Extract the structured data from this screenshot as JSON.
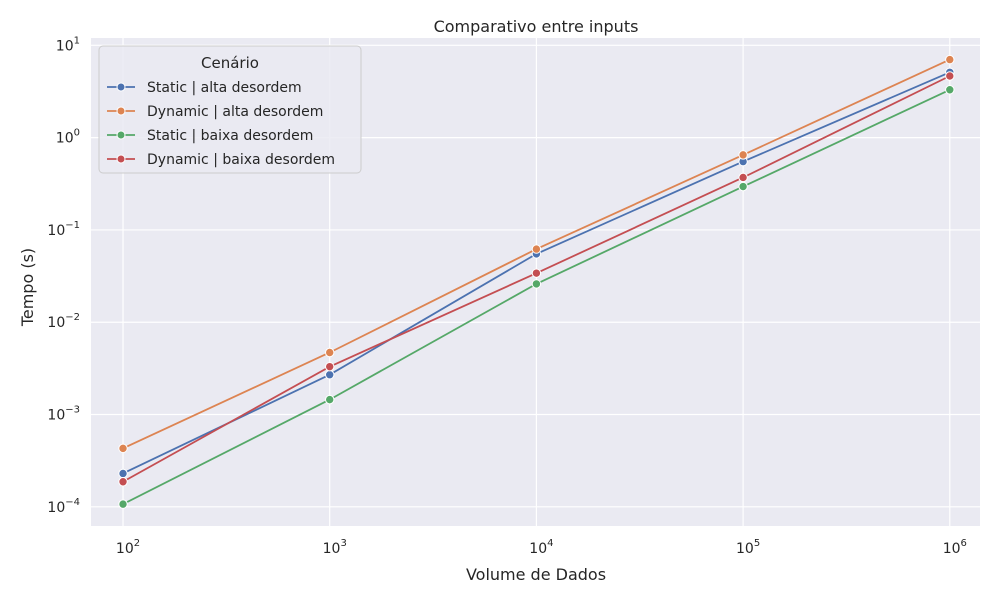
{
  "chart_data": {
    "type": "line",
    "title": "Comparativo entre inputs",
    "xlabel": "Volume de Dados",
    "ylabel": "Tempo (s)",
    "xscale": "log",
    "yscale": "log",
    "xlim": [
      70,
      1400000
    ],
    "ylim": [
      6.2e-05,
      12
    ],
    "x": [
      100,
      1000,
      10000,
      100000,
      1000000
    ],
    "x_ticks": [
      {
        "value": 100,
        "base": "10",
        "exp": "2"
      },
      {
        "value": 1000,
        "base": "10",
        "exp": "3"
      },
      {
        "value": 10000,
        "base": "10",
        "exp": "4"
      },
      {
        "value": 100000,
        "base": "10",
        "exp": "5"
      },
      {
        "value": 1000000,
        "base": "10",
        "exp": "6"
      }
    ],
    "y_ticks": [
      {
        "value": 0.0001,
        "base": "10",
        "exp": "−4"
      },
      {
        "value": 0.001,
        "base": "10",
        "exp": "−3"
      },
      {
        "value": 0.01,
        "base": "10",
        "exp": "−2"
      },
      {
        "value": 0.1,
        "base": "10",
        "exp": "−1"
      },
      {
        "value": 1,
        "base": "10",
        "exp": "0"
      },
      {
        "value": 10,
        "base": "10",
        "exp": "1"
      }
    ],
    "grid": true,
    "legend": {
      "title": "Cenário",
      "position": "top-left"
    },
    "series": [
      {
        "name": "Static | alta desordem",
        "color": "#4c72b0",
        "values": [
          0.00023,
          0.0027,
          0.055,
          0.55,
          5.1
        ]
      },
      {
        "name": "Dynamic | alta desordem",
        "color": "#dd8452",
        "values": [
          0.00043,
          0.0047,
          0.062,
          0.65,
          7.0
        ]
      },
      {
        "name": "Static | baixa desordem",
        "color": "#55a868",
        "values": [
          0.000107,
          0.00145,
          0.026,
          0.295,
          3.3
        ]
      },
      {
        "name": "Dynamic | baixa desordem",
        "color": "#c44e52",
        "values": [
          0.000187,
          0.0033,
          0.034,
          0.37,
          4.65
        ]
      }
    ]
  }
}
